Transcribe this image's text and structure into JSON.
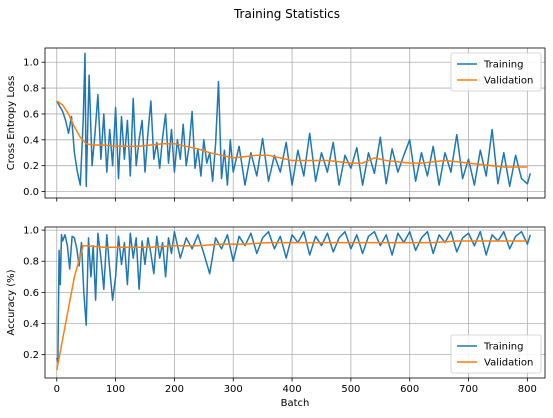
{
  "suptitle": "Training Statistics",
  "colors": {
    "training": "#1f77b4",
    "validation": "#ff7f0e",
    "grid": "#b0b0b0"
  },
  "chart_data": [
    {
      "type": "line",
      "title": "",
      "xlabel": "",
      "ylabel": "Cross Entropy Loss",
      "xlim": [
        -20,
        830
      ],
      "ylim": [
        -0.05,
        1.11
      ],
      "xticks": [
        0,
        100,
        200,
        300,
        400,
        500,
        600,
        700,
        800
      ],
      "show_xticklabels": false,
      "yticks": [
        0.0,
        0.2,
        0.4,
        0.6,
        0.8,
        1.0
      ],
      "yticklabels": [
        "0.0",
        "0.2",
        "0.4",
        "0.6",
        "0.8",
        "1.0"
      ],
      "grid": true,
      "legend": "top-right",
      "series": [
        {
          "name": "Training",
          "x": [
            0,
            5,
            10,
            15,
            20,
            25,
            30,
            35,
            40,
            45,
            48,
            50,
            55,
            60,
            65,
            70,
            75,
            80,
            85,
            90,
            95,
            100,
            105,
            110,
            115,
            120,
            125,
            130,
            135,
            140,
            145,
            150,
            155,
            160,
            165,
            170,
            175,
            180,
            185,
            190,
            195,
            200,
            205,
            210,
            215,
            220,
            225,
            230,
            235,
            240,
            245,
            250,
            255,
            260,
            265,
            270,
            275,
            280,
            285,
            290,
            295,
            300,
            310,
            320,
            330,
            340,
            350,
            360,
            370,
            380,
            390,
            400,
            410,
            420,
            430,
            440,
            450,
            460,
            470,
            480,
            490,
            500,
            510,
            520,
            530,
            540,
            550,
            560,
            570,
            580,
            590,
            600,
            610,
            620,
            630,
            640,
            650,
            660,
            670,
            680,
            690,
            700,
            710,
            720,
            730,
            740,
            750,
            760,
            770,
            780,
            790,
            800,
            805
          ],
          "y": [
            0.7,
            0.66,
            0.62,
            0.55,
            0.45,
            0.58,
            0.3,
            0.15,
            0.05,
            0.55,
            1.07,
            0.04,
            0.9,
            0.2,
            0.45,
            0.75,
            0.25,
            0.6,
            0.15,
            0.48,
            0.2,
            0.65,
            0.1,
            0.58,
            0.25,
            0.55,
            0.12,
            0.72,
            0.2,
            0.4,
            0.55,
            0.15,
            0.45,
            0.7,
            0.25,
            0.38,
            0.18,
            0.42,
            0.6,
            0.22,
            0.48,
            0.15,
            0.4,
            0.25,
            0.52,
            0.2,
            0.35,
            0.62,
            0.18,
            0.33,
            0.12,
            0.4,
            0.22,
            0.3,
            0.08,
            0.37,
            0.85,
            0.1,
            0.32,
            0.05,
            0.4,
            0.15,
            0.35,
            0.05,
            0.3,
            0.12,
            0.41,
            0.08,
            0.28,
            0.15,
            0.38,
            0.05,
            0.32,
            0.12,
            0.45,
            0.08,
            0.3,
            0.15,
            0.38,
            0.05,
            0.28,
            0.18,
            0.34,
            0.05,
            0.3,
            0.14,
            0.42,
            0.06,
            0.33,
            0.15,
            0.28,
            0.4,
            0.08,
            0.3,
            0.12,
            0.35,
            0.05,
            0.3,
            0.15,
            0.44,
            0.1,
            0.25,
            0.05,
            0.32,
            0.12,
            0.48,
            0.06,
            0.3,
            0.04,
            0.28,
            0.1,
            0.06,
            0.14
          ]
        },
        {
          "name": "Validation",
          "x": [
            0,
            10,
            20,
            30,
            40,
            50,
            60,
            80,
            100,
            120,
            140,
            160,
            180,
            200,
            220,
            240,
            260,
            280,
            300,
            320,
            340,
            360,
            380,
            400,
            420,
            440,
            460,
            480,
            500,
            520,
            540,
            560,
            580,
            600,
            620,
            640,
            660,
            680,
            700,
            720,
            740,
            760,
            780,
            800
          ],
          "y": [
            0.7,
            0.67,
            0.6,
            0.5,
            0.42,
            0.37,
            0.36,
            0.36,
            0.35,
            0.35,
            0.35,
            0.36,
            0.37,
            0.37,
            0.35,
            0.33,
            0.3,
            0.28,
            0.26,
            0.27,
            0.28,
            0.28,
            0.26,
            0.24,
            0.24,
            0.24,
            0.24,
            0.23,
            0.22,
            0.22,
            0.26,
            0.24,
            0.23,
            0.22,
            0.22,
            0.23,
            0.24,
            0.23,
            0.22,
            0.21,
            0.2,
            0.19,
            0.19,
            0.19
          ]
        }
      ]
    },
    {
      "type": "line",
      "title": "",
      "xlabel": "Batch",
      "ylabel": "Accuracy (%)",
      "xlim": [
        -20,
        830
      ],
      "ylim": [
        0.05,
        1.02
      ],
      "xticks": [
        0,
        100,
        200,
        300,
        400,
        500,
        600,
        700,
        800
      ],
      "xticklabels": [
        "0",
        "100",
        "200",
        "300",
        "400",
        "500",
        "600",
        "700",
        "800"
      ],
      "show_xticklabels": true,
      "yticks": [
        0.2,
        0.4,
        0.6,
        0.8,
        1.0
      ],
      "yticklabels": [
        "0.2",
        "0.4",
        "0.6",
        "0.8",
        "1.0"
      ],
      "grid": true,
      "legend": "bottom-right",
      "series": [
        {
          "name": "Training",
          "x": [
            0,
            2,
            4,
            6,
            8,
            10,
            14,
            18,
            22,
            26,
            30,
            34,
            38,
            42,
            46,
            50,
            54,
            58,
            62,
            66,
            70,
            75,
            80,
            85,
            90,
            95,
            100,
            105,
            110,
            115,
            120,
            125,
            130,
            135,
            140,
            145,
            150,
            155,
            160,
            165,
            170,
            175,
            180,
            185,
            190,
            195,
            200,
            210,
            220,
            230,
            240,
            250,
            260,
            270,
            280,
            290,
            300,
            310,
            320,
            330,
            340,
            350,
            360,
            370,
            380,
            390,
            400,
            410,
            420,
            430,
            440,
            450,
            460,
            470,
            480,
            490,
            500,
            510,
            520,
            530,
            540,
            550,
            560,
            570,
            580,
            590,
            600,
            610,
            620,
            630,
            640,
            650,
            660,
            670,
            680,
            690,
            700,
            710,
            720,
            730,
            740,
            750,
            760,
            770,
            780,
            790,
            800,
            805
          ],
          "y": [
            0.18,
            0.15,
            0.87,
            0.65,
            0.97,
            0.93,
            0.97,
            0.9,
            0.75,
            0.96,
            0.95,
            0.88,
            0.77,
            0.92,
            0.6,
            0.39,
            0.95,
            0.7,
            0.9,
            0.55,
            0.98,
            0.82,
            0.62,
            0.97,
            0.75,
            0.55,
            0.7,
            0.96,
            0.78,
            0.92,
            0.65,
            0.98,
            0.82,
            0.95,
            0.62,
            0.93,
            0.78,
            0.95,
            0.85,
            0.72,
            0.96,
            0.82,
            0.92,
            0.7,
            0.95,
            0.85,
            0.99,
            0.82,
            0.95,
            0.88,
            0.97,
            0.85,
            0.72,
            0.95,
            0.88,
            0.97,
            0.8,
            0.96,
            0.9,
            0.98,
            0.85,
            0.95,
            0.99,
            0.88,
            0.96,
            0.82,
            0.97,
            0.92,
            0.99,
            0.84,
            0.96,
            0.9,
            0.98,
            0.86,
            0.95,
            0.99,
            0.88,
            0.97,
            0.85,
            0.96,
            0.99,
            0.9,
            0.97,
            0.84,
            0.98,
            0.92,
            0.99,
            0.87,
            0.95,
            0.99,
            0.85,
            0.97,
            0.92,
            0.99,
            0.86,
            0.95,
            0.98,
            0.9,
            0.99,
            0.84,
            0.97,
            0.93,
            0.99,
            0.88,
            0.96,
            0.99,
            0.91,
            0.97
          ]
        },
        {
          "name": "Validation",
          "x": [
            0,
            15,
            30,
            45,
            50,
            80,
            120,
            160,
            200,
            240,
            280,
            320,
            360,
            400,
            440,
            480,
            520,
            560,
            600,
            640,
            680,
            720,
            760,
            800
          ],
          "y": [
            0.1,
            0.4,
            0.7,
            0.9,
            0.9,
            0.89,
            0.89,
            0.89,
            0.9,
            0.9,
            0.91,
            0.91,
            0.92,
            0.92,
            0.92,
            0.92,
            0.92,
            0.92,
            0.92,
            0.92,
            0.93,
            0.93,
            0.93,
            0.93
          ]
        }
      ]
    }
  ]
}
